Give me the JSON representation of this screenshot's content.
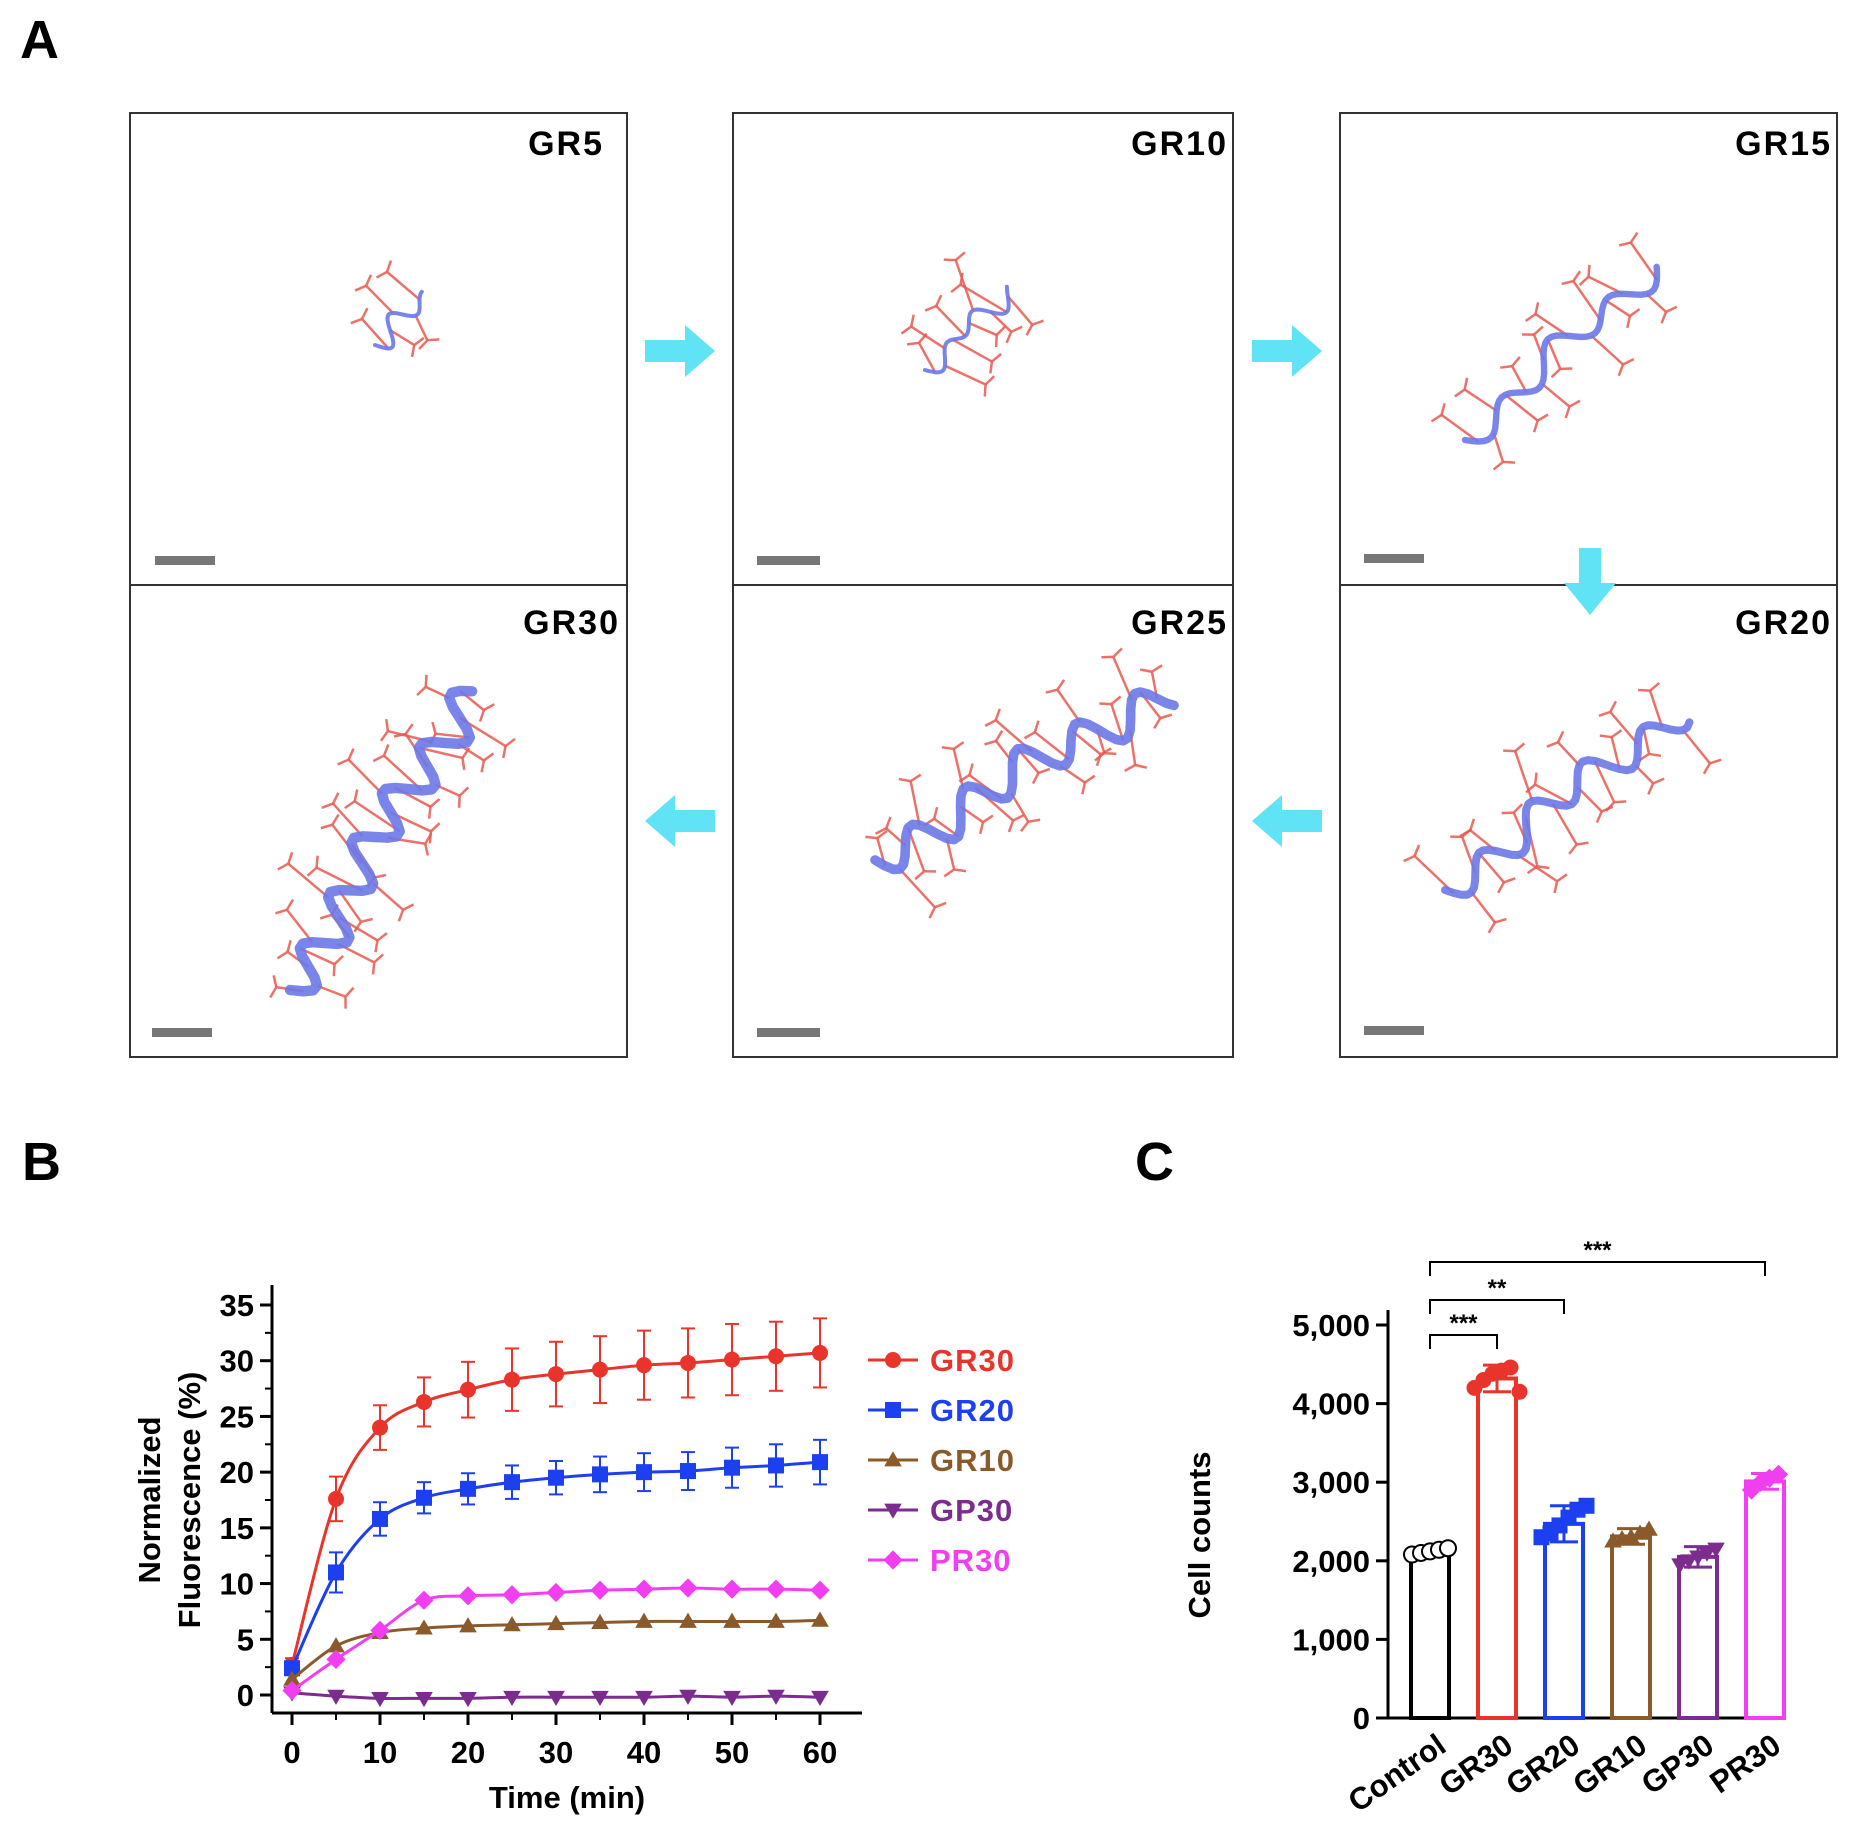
{
  "panel_a": {
    "letter": "A",
    "boxes": [
      "GR5",
      "GR10",
      "GR15",
      "GR30",
      "GR25",
      "GR20"
    ]
  },
  "panel_b": {
    "letter": "B"
  },
  "panel_c": {
    "letter": "C"
  },
  "colors": {
    "GR30": "#e8342a",
    "GR20": "#1c3ff0",
    "GR10": "#8b5a2b",
    "GP30": "#7b2c8e",
    "PR30": "#f03ef0",
    "Control": "#000000",
    "arrow": "#5fe3f5",
    "backbone": "#6b78e8",
    "sidechain": "#e8594f"
  },
  "chart_data": [
    {
      "type": "line",
      "xlabel": "Time (min)",
      "ylabel_lines": [
        "Normalized",
        "Fluorescence (%)"
      ],
      "xlim": [
        0,
        60
      ],
      "ylim": [
        0,
        35
      ],
      "xticks": [
        0,
        10,
        20,
        30,
        40,
        50,
        60
      ],
      "yticks": [
        0,
        5,
        10,
        15,
        20,
        25,
        30,
        35
      ],
      "x": [
        0,
        5,
        10,
        15,
        20,
        25,
        30,
        35,
        40,
        45,
        50,
        55,
        60
      ],
      "legend_position": "right",
      "series": [
        {
          "name": "GR30",
          "marker": "circle",
          "values": [
            2.7,
            17.6,
            24.0,
            26.3,
            27.4,
            28.3,
            28.8,
            29.2,
            29.6,
            29.8,
            30.1,
            30.4,
            30.7
          ],
          "errors": [
            0.6,
            2.0,
            2.0,
            2.2,
            2.5,
            2.8,
            2.9,
            3.0,
            3.1,
            3.1,
            3.2,
            3.1,
            3.1
          ]
        },
        {
          "name": "GR20",
          "marker": "square",
          "values": [
            2.4,
            11.0,
            15.8,
            17.7,
            18.5,
            19.1,
            19.5,
            19.8,
            20.0,
            20.1,
            20.4,
            20.6,
            20.9
          ],
          "errors": [
            0.5,
            1.8,
            1.5,
            1.4,
            1.4,
            1.5,
            1.5,
            1.6,
            1.7,
            1.7,
            1.8,
            1.9,
            2.0
          ]
        },
        {
          "name": "GR10",
          "marker": "triangle-up",
          "values": [
            1.4,
            4.4,
            5.6,
            6.0,
            6.2,
            6.3,
            6.4,
            6.5,
            6.6,
            6.6,
            6.6,
            6.6,
            6.7
          ]
        },
        {
          "name": "GP30",
          "marker": "triangle-down",
          "values": [
            0.2,
            -0.1,
            -0.3,
            -0.3,
            -0.3,
            -0.2,
            -0.2,
            -0.2,
            -0.2,
            -0.1,
            -0.2,
            -0.1,
            -0.2
          ]
        },
        {
          "name": "PR30",
          "marker": "diamond",
          "values": [
            0.4,
            3.2,
            5.8,
            8.5,
            8.9,
            9.0,
            9.2,
            9.4,
            9.5,
            9.6,
            9.5,
            9.5,
            9.4
          ]
        }
      ]
    },
    {
      "type": "bar",
      "ylabel": "Cell counts",
      "ylim": [
        0,
        5000
      ],
      "yticks": [
        0,
        1000,
        2000,
        3000,
        4000,
        5000
      ],
      "ytick_labels": [
        "0",
        "1,000",
        "2,000",
        "3,000",
        "4,000",
        "5,000"
      ],
      "categories": [
        "Control",
        "GR30",
        "GR20",
        "GR10",
        "GP30",
        "PR30"
      ],
      "values": [
        2120,
        4320,
        2470,
        2310,
        2050,
        3010
      ],
      "errors": [
        50,
        170,
        230,
        100,
        130,
        100
      ],
      "points": [
        [
          2080,
          2100,
          2120,
          2140,
          2160
        ],
        [
          4200,
          4300,
          4380,
          4420,
          4460,
          4150
        ],
        [
          2300,
          2350,
          2450,
          2550,
          2650,
          2700
        ],
        [
          2250,
          2280,
          2300,
          2350,
          2400
        ],
        [
          1950,
          2000,
          2050,
          2100,
          2150
        ],
        [
          2900,
          3000,
          3050,
          3100
        ]
      ],
      "markers": [
        "circle",
        "circle",
        "square",
        "triangle-up",
        "triangle-down",
        "diamond"
      ],
      "significance": [
        {
          "from": "Control",
          "to": "GR30",
          "label": "***"
        },
        {
          "from": "Control",
          "to": "GR20",
          "label": "**"
        },
        {
          "from": "Control",
          "to": "PR30",
          "label": "***"
        }
      ]
    }
  ]
}
